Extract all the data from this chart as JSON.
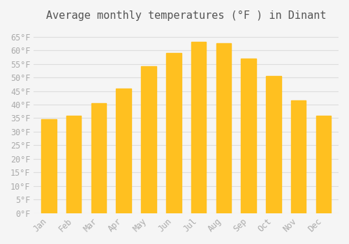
{
  "title": "Average monthly temperatures (°F ) in Dinant",
  "months": [
    "Jan",
    "Feb",
    "Mar",
    "Apr",
    "May",
    "Jun",
    "Jul",
    "Aug",
    "Sep",
    "Oct",
    "Nov",
    "Dec"
  ],
  "values": [
    34.5,
    36.0,
    40.5,
    46.0,
    54.0,
    59.0,
    63.0,
    62.5,
    57.0,
    50.5,
    41.5,
    36.0
  ],
  "bar_color_top": "#FFC020",
  "bar_color_bottom": "#FFB000",
  "background_color": "#f5f5f5",
  "grid_color": "#dddddd",
  "text_color": "#aaaaaa",
  "ylim": [
    0,
    68
  ],
  "yticks": [
    0,
    5,
    10,
    15,
    20,
    25,
    30,
    35,
    40,
    45,
    50,
    55,
    60,
    65
  ],
  "title_fontsize": 11,
  "tick_fontsize": 8.5
}
